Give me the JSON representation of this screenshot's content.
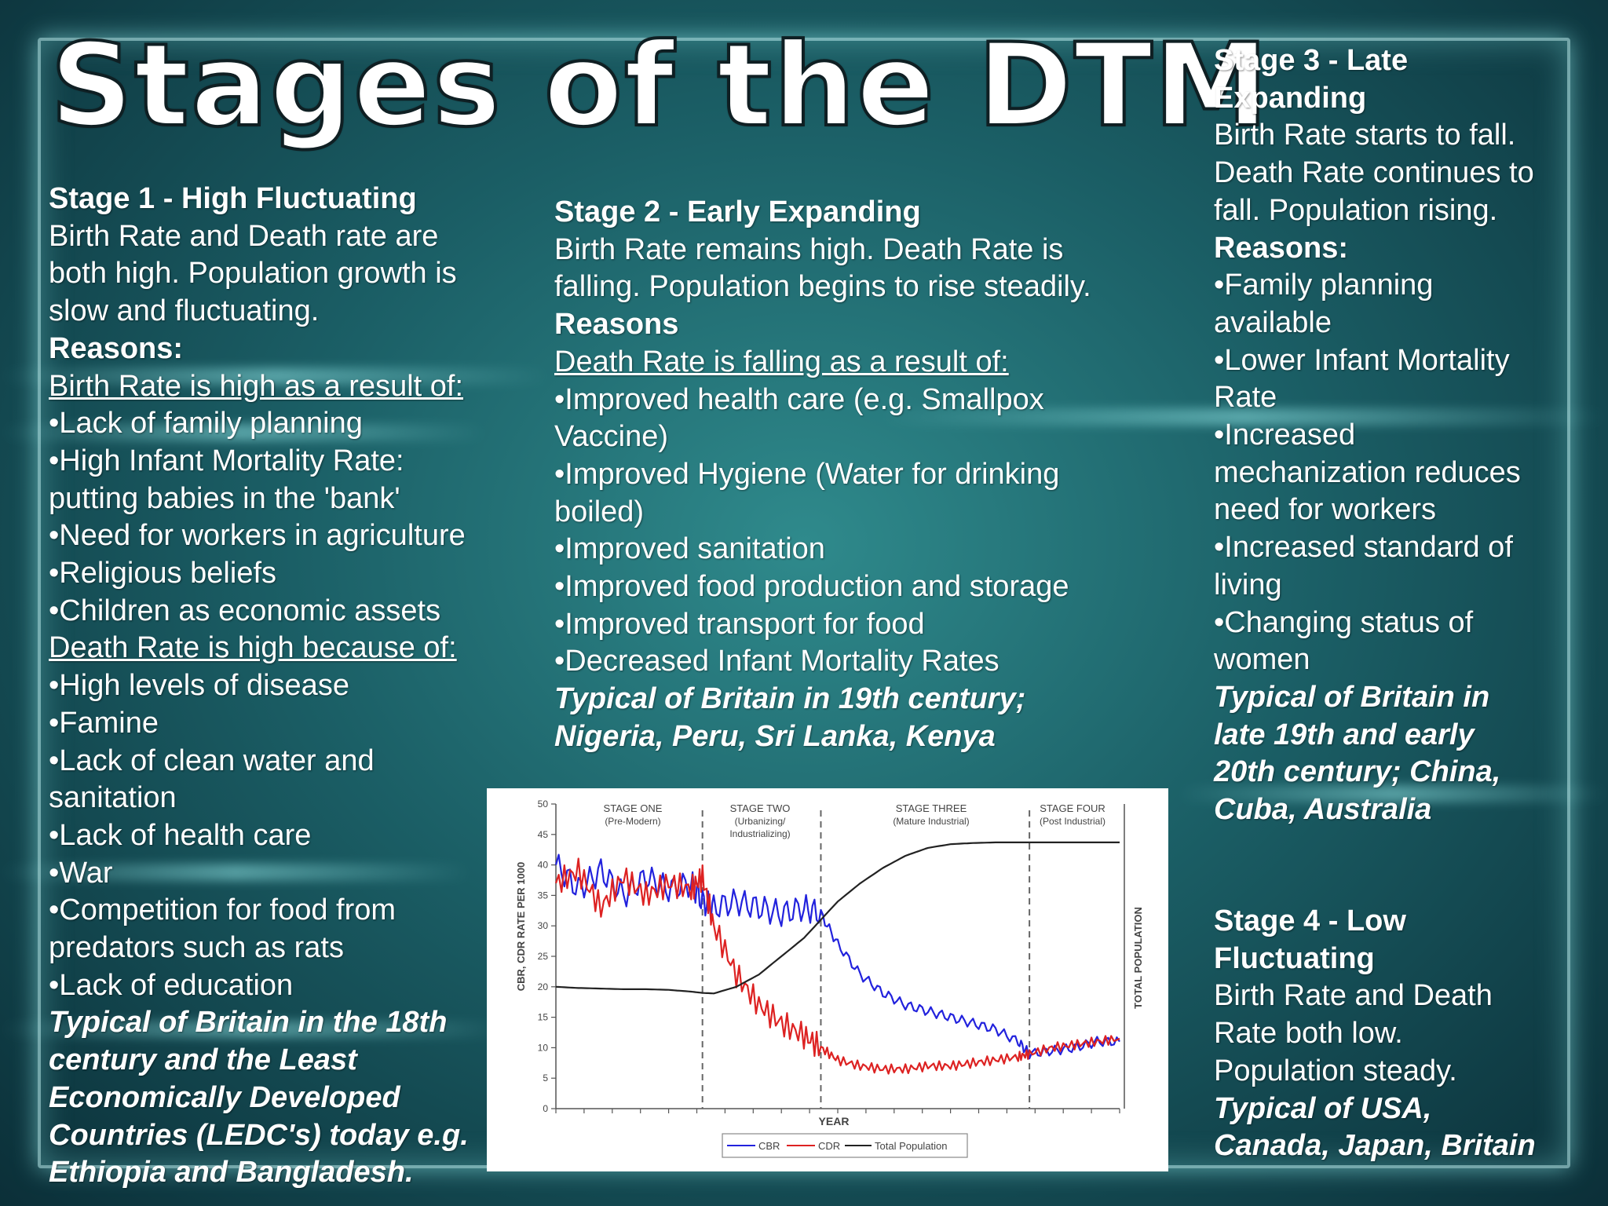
{
  "title": "Stages of the DTM",
  "stage1": {
    "heading": "Stage 1 - High Fluctuating",
    "desc": [
      "Birth Rate and Death rate are",
      "both high. Population growth is",
      "slow and fluctuating."
    ],
    "reasons_label": "Reasons:",
    "birth_label": "Birth Rate is high as a result of:",
    "birth_items": [
      "•Lack of family planning",
      "•High Infant Mortality Rate:",
      "putting babies in the 'bank'",
      "•Need for workers in agriculture",
      "•Religious beliefs",
      "•Children as economic assets"
    ],
    "death_label": "Death Rate is high because of:",
    "death_items": [
      "•High levels of disease",
      "•Famine",
      "•Lack of clean water and",
      "sanitation",
      "•Lack of health care",
      "•War",
      "•Competition for food from",
      "predators such as rats",
      "•Lack of education"
    ],
    "typical": [
      "Typical of Britain in the 18th",
      "century and the Least",
      "Economically Developed",
      "Countries (LEDC's) today e.g.",
      "Ethiopia and Bangladesh."
    ]
  },
  "stage2": {
    "heading": "Stage 2 - Early Expanding",
    "desc": [
      "Birth Rate remains high. Death Rate is",
      "falling. Population begins to rise steadily."
    ],
    "reasons_label": "Reasons",
    "death_label": "Death Rate is falling as a result of:",
    "items": [
      "•Improved health care (e.g. Smallpox",
      "Vaccine)",
      "•Improved Hygiene (Water for drinking",
      "boiled)",
      "•Improved sanitation",
      "•Improved food production and storage",
      "•Improved transport for food",
      "•Decreased Infant Mortality Rates"
    ],
    "typical": [
      "Typical of Britain in 19th century;",
      "Nigeria, Peru, Sri Lanka, Kenya"
    ]
  },
  "stage3": {
    "heading": [
      "Stage 3 - Late",
      "Expanding"
    ],
    "desc": [
      "Birth Rate starts to fall.",
      "Death Rate continues to",
      "fall. Population rising."
    ],
    "reasons_label": "Reasons:",
    "items": [
      "•Family planning",
      "available",
      "•Lower Infant Mortality",
      "Rate",
      "•Increased",
      "mechanization reduces",
      "need for workers",
      "•Increased standard of",
      "living",
      "•Changing status of",
      "women"
    ],
    "typical": [
      "Typical of Britain in",
      "late 19th and early",
      "20th century; China,",
      "Cuba, Australia"
    ]
  },
  "stage4": {
    "heading": [
      "Stage 4 - Low",
      "Fluctuating"
    ],
    "desc": [
      "Birth Rate and Death",
      "Rate both low.",
      "Population steady."
    ],
    "typical": [
      "Typical of USA,",
      "Canada, Japan, Britain"
    ]
  },
  "chart_data": {
    "type": "line",
    "ylabel": "CBR, CDR RATE PER 1000",
    "y2label": "TOTAL POPULATION",
    "xlabel": "YEAR",
    "ylim": [
      0,
      50
    ],
    "yticks": [
      "0",
      "5",
      "10",
      "15",
      "20",
      "25",
      "30",
      "35",
      "40",
      "45",
      "50"
    ],
    "stage_labels": [
      {
        "name": "STAGE ONE",
        "sub": "(Pre-Modern)"
      },
      {
        "name": "STAGE TWO",
        "sub": "(Urbanizing/",
        "sub2": "Industrializing)"
      },
      {
        "name": "STAGE THREE",
        "sub": "(Mature Industrial)"
      },
      {
        "name": "STAGE FOUR",
        "sub": "(Post Industrial)"
      }
    ],
    "stage_boundaries_x": [
      26,
      47,
      84
    ],
    "x": [
      0,
      4,
      8,
      12,
      16,
      20,
      24,
      26,
      28,
      32,
      36,
      40,
      44,
      47,
      50,
      54,
      58,
      62,
      66,
      70,
      74,
      78,
      82,
      84,
      88,
      92,
      96,
      100
    ],
    "series": [
      {
        "name": "CBR",
        "color": "#2222dd",
        "values": [
          40,
          36,
          39,
          35,
          38,
          36,
          37,
          34,
          33,
          34,
          33,
          32,
          33,
          32,
          27,
          22,
          19,
          17,
          16,
          15,
          14,
          13,
          11,
          9,
          9.5,
          10,
          11,
          11
        ]
      },
      {
        "name": "CDR",
        "color": "#dd2222",
        "values": [
          37,
          39,
          33,
          38,
          35,
          37,
          36,
          38,
          30,
          22,
          17,
          14,
          12,
          10,
          8,
          7,
          6.5,
          6.5,
          7,
          7,
          7.5,
          8,
          8.5,
          9,
          10,
          10.5,
          11,
          11.5
        ]
      },
      {
        "name": "Total Population",
        "color": "#222222",
        "values": [
          20,
          19.8,
          19.7,
          19.6,
          19.6,
          19.5,
          19.2,
          19,
          18.9,
          20,
          22,
          25,
          28,
          31,
          34,
          37,
          39.5,
          41.5,
          42.8,
          43.4,
          43.6,
          43.7,
          43.7,
          43.7,
          43.7,
          43.7,
          43.7,
          43.7
        ]
      }
    ],
    "legend": [
      "CBR",
      "CDR",
      "Total Population"
    ]
  }
}
